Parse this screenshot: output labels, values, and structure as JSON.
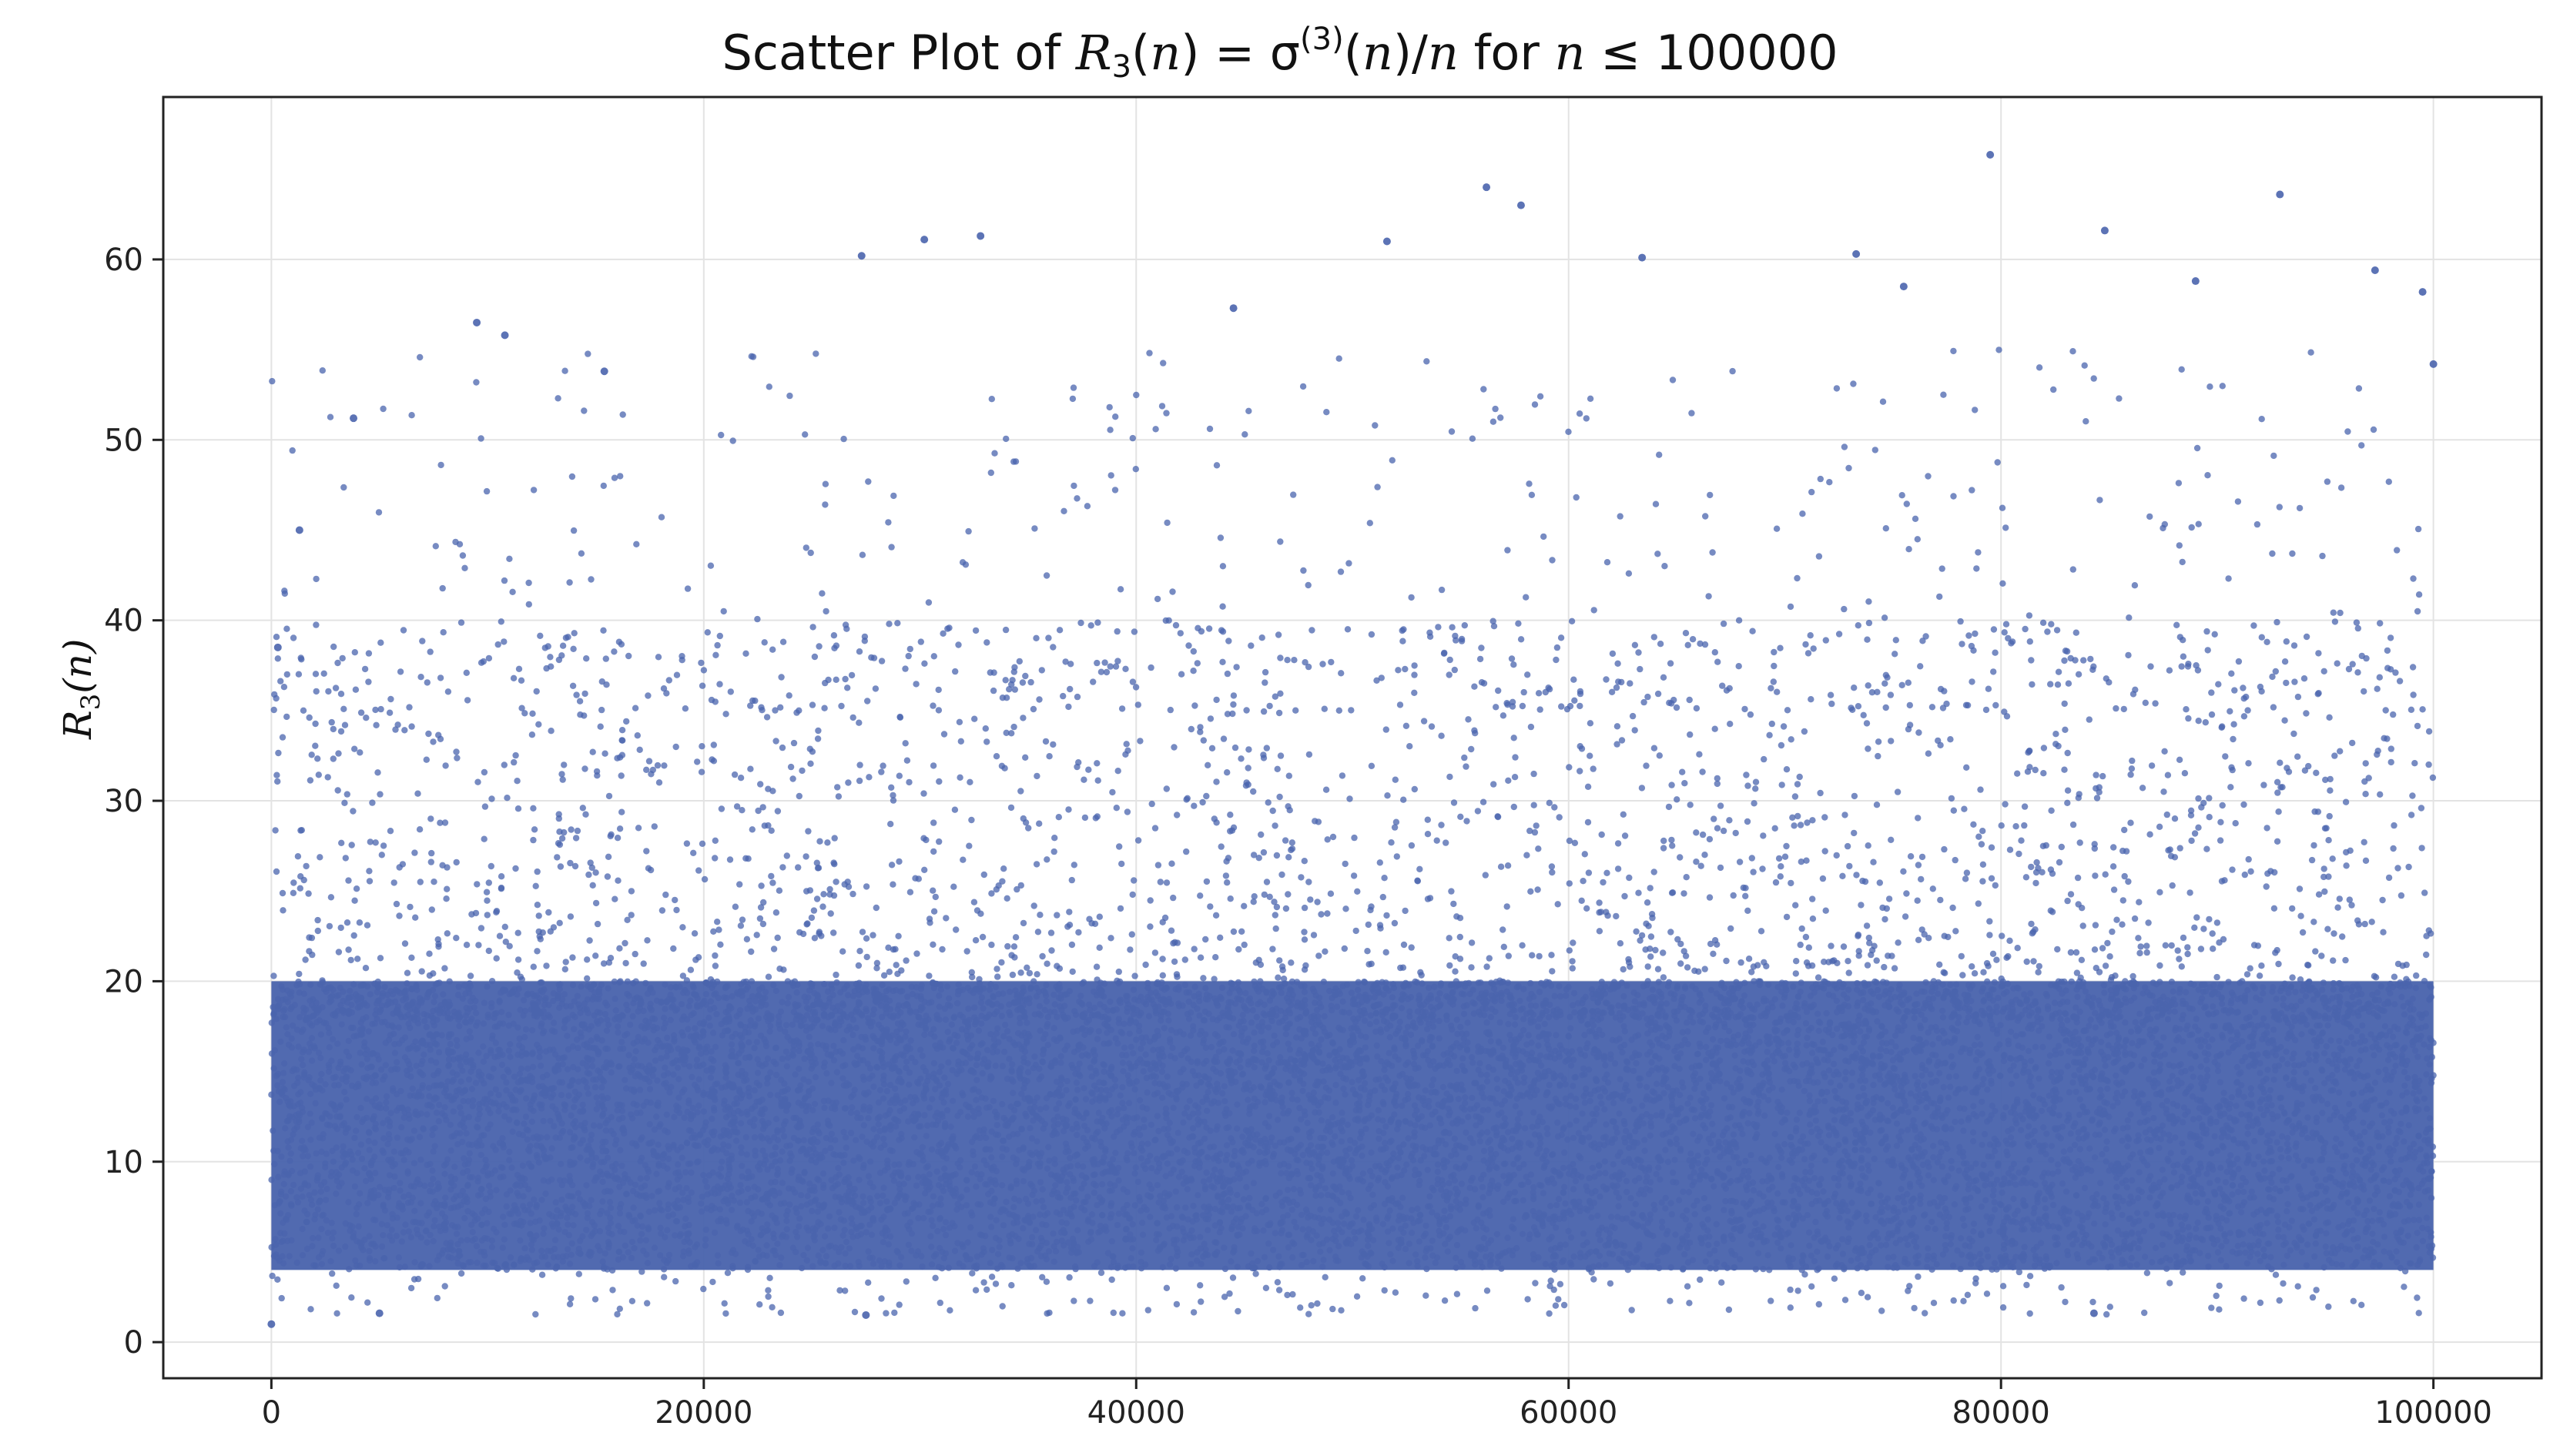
{
  "chart_data": {
    "type": "scatter",
    "title_parts": [
      "Scatter Plot of ",
      "R",
      "3",
      "(",
      "n",
      ") = σ",
      "(3)",
      "(",
      "n",
      ")/",
      "n",
      " for ",
      "n",
      " ≤ 100000"
    ],
    "ylabel_parts": [
      "R",
      "3",
      "(",
      "n",
      ")"
    ],
    "xlabel": "",
    "xlim": [
      -5000,
      105000
    ],
    "ylim": [
      -2,
      69
    ],
    "xticks": [
      0,
      20000,
      40000,
      60000,
      80000,
      100000
    ],
    "xtick_labels": [
      "0",
      "20000",
      "40000",
      "60000",
      "80000",
      "100000"
    ],
    "yticks": [
      0,
      10,
      20,
      30,
      40,
      50,
      60
    ],
    "ytick_labels": [
      "0",
      "10",
      "20",
      "30",
      "40",
      "50",
      "60"
    ],
    "grid": true,
    "marker_color": "#4a64ad",
    "n_points": 100000,
    "dense_band_range": [
      4,
      20
    ],
    "min_value_approx": 1,
    "max_value_approx": 66,
    "notable_points": [
      {
        "x": 79500,
        "y": 65.8
      },
      {
        "x": 56200,
        "y": 64.0
      },
      {
        "x": 92900,
        "y": 63.6
      },
      {
        "x": 57800,
        "y": 63.0
      },
      {
        "x": 84800,
        "y": 61.6
      },
      {
        "x": 32800,
        "y": 61.3
      },
      {
        "x": 30200,
        "y": 61.1
      },
      {
        "x": 51600,
        "y": 61.0
      },
      {
        "x": 27300,
        "y": 60.2
      },
      {
        "x": 73300,
        "y": 60.3
      },
      {
        "x": 63400,
        "y": 60.1
      },
      {
        "x": 97300,
        "y": 59.4
      },
      {
        "x": 89000,
        "y": 58.8
      },
      {
        "x": 99500,
        "y": 58.2
      },
      {
        "x": 75500,
        "y": 58.5
      },
      {
        "x": 44500,
        "y": 57.3
      },
      {
        "x": 9500,
        "y": 56.5
      },
      {
        "x": 10800,
        "y": 55.8
      },
      {
        "x": 15400,
        "y": 53.8
      },
      {
        "x": 3800,
        "y": 51.2
      },
      {
        "x": 1300,
        "y": 45.0
      },
      {
        "x": 300,
        "y": 38.5
      },
      {
        "x": 0,
        "y": 1.0
      },
      {
        "x": 84300,
        "y": 1.6
      },
      {
        "x": 27500,
        "y": 1.5
      },
      {
        "x": 5000,
        "y": 1.6
      },
      {
        "x": 100000,
        "y": 54.2
      }
    ]
  }
}
